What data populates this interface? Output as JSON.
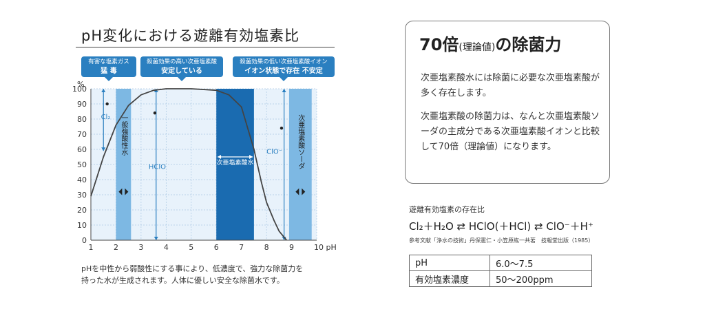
{
  "title": "pH変化における遊離有効塩素比",
  "callouts": [
    {
      "line1": "有害な塩素ガス",
      "line2": "猛 毒"
    },
    {
      "line1": "殺菌効果の高い次亜塩素酸",
      "line2": "安定している"
    },
    {
      "line1": "殺菌効果の低い次亜塩素酸イオン",
      "line2": "イオン状態で存在 不安定"
    }
  ],
  "caption": [
    "pHを中性から弱酸性にする事により、低濃度で、強力な除菌力を",
    "持った水が生成されます。人体に優しい安全な除菌水です。"
  ],
  "info_box": {
    "title": "70倍",
    "title_small": "(理論値)",
    "title_suffix": "の除菌力",
    "para1": "次亜塩素酸水には除菌に必要な次亜塩素酸が多く存在します。",
    "para2": "次亜塩素酸の除菌力は、なんと次亜塩素酸ソーダの主成分である次亜塩素酸イオンと比較して70倍（理論値）になります。"
  },
  "equation": {
    "label": "遊離有効塩素の存在比",
    "text": "Cl₂＋H₂O ⇄ HClO(＋HCl) ⇄ ClO⁻＋H⁺",
    "reference": "参考文献「浄水の技術」丹保憲仁・小笠原紘一共著　技報堂出版（1985）"
  },
  "spec_table": [
    {
      "label": "pH",
      "value": "6.0～7.5"
    },
    {
      "label": "有効塩素濃度",
      "value": "50～200ppm"
    }
  ],
  "chart_data": {
    "type": "line",
    "ylabel": "%",
    "xlabel": "pH",
    "xlim": [
      1,
      10
    ],
    "ylim": [
      0,
      100
    ],
    "x_ticks": [
      "1",
      "2",
      "3",
      "4",
      "5",
      "6",
      "7",
      "8",
      "9",
      "10 pH"
    ],
    "y_ticks": [
      "0",
      "10",
      "20",
      "30",
      "40",
      "50",
      "60",
      "70",
      "80",
      "90",
      "100"
    ],
    "series": [
      {
        "name": "HClO",
        "x": [
          1,
          1.5,
          2,
          2.5,
          3,
          3.5,
          4,
          5,
          6,
          6.5,
          7,
          7.5,
          7.8,
          8,
          8.3,
          8.5,
          8.8
        ],
        "y": [
          29,
          55,
          76,
          89,
          96,
          99,
          100,
          100,
          99,
          96,
          88,
          60,
          38,
          25,
          13,
          6,
          0
        ]
      }
    ],
    "bands": [
      {
        "label": "一般強酸性水",
        "from": 2,
        "to": 2.6,
        "color": "#7db8e3"
      },
      {
        "label": "次亜塩素酸水",
        "from": 6,
        "to": 7.5,
        "color": "#1a6bb0"
      },
      {
        "label": "次亜塩素酸ソーダ",
        "from": 8.9,
        "to": 9.8,
        "color": "#7db8e3"
      }
    ],
    "region_labels": [
      {
        "label": "Cl₂",
        "x": 1.4,
        "y": 80
      },
      {
        "label": "HClO",
        "x": 3.3,
        "y": 47
      },
      {
        "label": "ClO⁻",
        "x": 8.0,
        "y": 57
      }
    ],
    "colors": {
      "grid": "#aac8e4",
      "plot_bg": "#e8f2fb",
      "axis": "#444444",
      "curve": "#444444",
      "arrow": "#2a7fc0"
    }
  }
}
